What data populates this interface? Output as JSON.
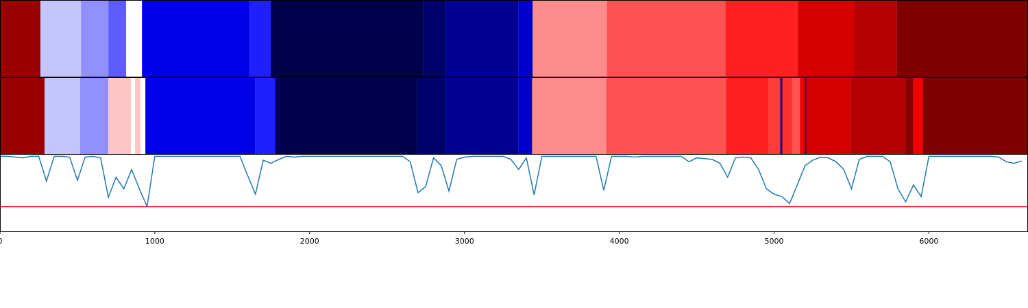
{
  "chart_data": [
    {
      "type": "segments",
      "xlim": [
        0,
        6640
      ],
      "edges": [
        0,
        261,
        523,
        700,
        815,
        917,
        1612,
        1749,
        2733,
        2879,
        3348,
        3441,
        3920,
        4686,
        5155,
        5518,
        5793,
        6640
      ],
      "colors": [
        "#990000",
        "#c4c4ff",
        "#9090ff",
        "#5c5cff",
        "#ffffff",
        "#0000e8",
        "#2020ff",
        "#00004c",
        "#00006a",
        "#000095",
        "#0000cc",
        "#ff8c8c",
        "#ff5252",
        "#ff2020",
        "#d40000",
        "#b40000",
        "#7f0000"
      ]
    },
    {
      "type": "segments",
      "xlim": [
        0,
        6640
      ],
      "edges": [
        0,
        288,
        518,
        700,
        846,
        872,
        908,
        939,
        1647,
        1776,
        2693,
        2879,
        3348,
        3437,
        3915,
        4690,
        4965,
        5040,
        5053,
        5115,
        5168,
        5199,
        5208,
        5492,
        5846,
        5899,
        5961,
        6640
      ],
      "colors": [
        "#990000",
        "#c4c4ff",
        "#9090ff",
        "#ffc4c4",
        "#ffffff",
        "#ffc4c4",
        "#ffffff",
        "#0000e8",
        "#2020ff",
        "#00004c",
        "#00006a",
        "#000095",
        "#0000cc",
        "#ff8c8c",
        "#ff5252",
        "#ff2020",
        "#ff3a3a",
        "#000094",
        "#ff2e2e",
        "#ff5252",
        "#ee0000",
        "#000080",
        "#d40000",
        "#b40000",
        "#880000",
        "#ee0000",
        "#7f0000"
      ]
    },
    {
      "type": "line",
      "xlim": [
        0,
        6640
      ],
      "ylim": [
        0,
        1
      ],
      "xticks": [
        0,
        1000,
        2000,
        3000,
        4000,
        5000,
        6000
      ],
      "color": "#1f77b4",
      "x": [
        0,
        50,
        100,
        150,
        200,
        250,
        300,
        350,
        400,
        450,
        500,
        550,
        600,
        650,
        700,
        750,
        800,
        850,
        900,
        950,
        1000,
        1050,
        1100,
        1150,
        1200,
        1250,
        1300,
        1350,
        1400,
        1450,
        1500,
        1550,
        1600,
        1650,
        1700,
        1750,
        1800,
        1850,
        1900,
        1950,
        2000,
        2050,
        2100,
        2150,
        2200,
        2250,
        2300,
        2350,
        2400,
        2450,
        2500,
        2550,
        2600,
        2650,
        2700,
        2750,
        2800,
        2850,
        2900,
        2950,
        3000,
        3050,
        3100,
        3150,
        3200,
        3250,
        3300,
        3350,
        3400,
        3450,
        3500,
        3550,
        3600,
        3650,
        3700,
        3750,
        3800,
        3850,
        3900,
        3950,
        4000,
        4050,
        4100,
        4150,
        4200,
        4250,
        4300,
        4350,
        4400,
        4450,
        4500,
        4550,
        4600,
        4650,
        4700,
        4750,
        4800,
        4850,
        4900,
        4950,
        5000,
        5050,
        5100,
        5150,
        5200,
        5250,
        5300,
        5350,
        5400,
        5450,
        5500,
        5550,
        5600,
        5650,
        5700,
        5750,
        5800,
        5850,
        5900,
        5950,
        6000,
        6050,
        6100,
        6150,
        6200,
        6250,
        6300,
        6350,
        6400,
        6450,
        6500,
        6550,
        6600
      ],
      "values": [
        0.97,
        0.97,
        0.96,
        0.95,
        0.97,
        0.97,
        0.65,
        0.97,
        0.97,
        0.96,
        0.66,
        0.96,
        0.97,
        0.95,
        0.44,
        0.7,
        0.55,
        0.8,
        0.55,
        0.32,
        0.97,
        0.97,
        0.97,
        0.97,
        0.97,
        0.97,
        0.97,
        0.97,
        0.97,
        0.97,
        0.97,
        0.97,
        0.72,
        0.48,
        0.92,
        0.88,
        0.93,
        0.97,
        0.96,
        0.97,
        0.97,
        0.97,
        0.97,
        0.97,
        0.97,
        0.97,
        0.97,
        0.97,
        0.97,
        0.97,
        0.97,
        0.97,
        0.97,
        0.9,
        0.5,
        0.58,
        0.95,
        0.85,
        0.52,
        0.93,
        0.96,
        0.97,
        0.97,
        0.97,
        0.97,
        0.97,
        0.93,
        0.8,
        0.95,
        0.47,
        0.97,
        0.97,
        0.97,
        0.97,
        0.97,
        0.97,
        0.97,
        0.97,
        0.53,
        0.97,
        0.97,
        0.97,
        0.96,
        0.97,
        0.97,
        0.97,
        0.97,
        0.97,
        0.97,
        0.9,
        0.95,
        0.94,
        0.93,
        0.88,
        0.7,
        0.95,
        0.96,
        0.95,
        0.8,
        0.55,
        0.48,
        0.45,
        0.36,
        0.6,
        0.85,
        0.92,
        0.96,
        0.95,
        0.9,
        0.8,
        0.55,
        0.93,
        0.97,
        0.97,
        0.97,
        0.9,
        0.55,
        0.38,
        0.6,
        0.45,
        0.97,
        0.97,
        0.97,
        0.97,
        0.97,
        0.97,
        0.97,
        0.97,
        0.97,
        0.96,
        0.9,
        0.88,
        0.91
      ],
      "threshold": {
        "value": 0.32,
        "color": "#ff0000"
      }
    }
  ]
}
